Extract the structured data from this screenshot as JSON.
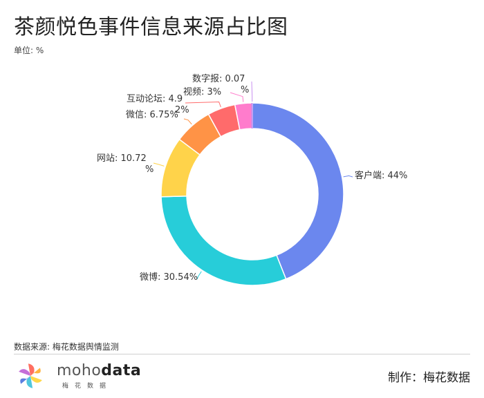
{
  "title": "茶颜悦色事件信息来源占比图",
  "unit_label": "单位: %",
  "source_label": "数据来源: 梅花数据舆情监测",
  "credit_label": "制作：梅花数据",
  "brand": {
    "name_light": "moho",
    "name_bold": "data",
    "subtitle": "梅花数据"
  },
  "chart_data": {
    "type": "pie",
    "donut": true,
    "slices": [
      {
        "name": "客户端",
        "value": 44,
        "label": "客户端: 44%",
        "color": "#6b87ee"
      },
      {
        "name": "微博",
        "value": 30.54,
        "label": "微博: 30.54%",
        "color": "#27cdd9"
      },
      {
        "name": "网站",
        "value": 10.72,
        "label": "网站: 10.72%",
        "color": "#ffd34a"
      },
      {
        "name": "微信",
        "value": 6.75,
        "label": "微信: 6.75%",
        "color": "#ff9346"
      },
      {
        "name": "互动论坛",
        "value": 4.92,
        "label": "互动论坛: 4.92%",
        "color": "#ff6b6b"
      },
      {
        "name": "视频",
        "value": 3,
        "label": "视频: 3%",
        "color": "#ff7ccc"
      },
      {
        "name": "数字报",
        "value": 0.07,
        "label": "数字报: 0.07%",
        "color": "#c88ff0"
      }
    ]
  }
}
